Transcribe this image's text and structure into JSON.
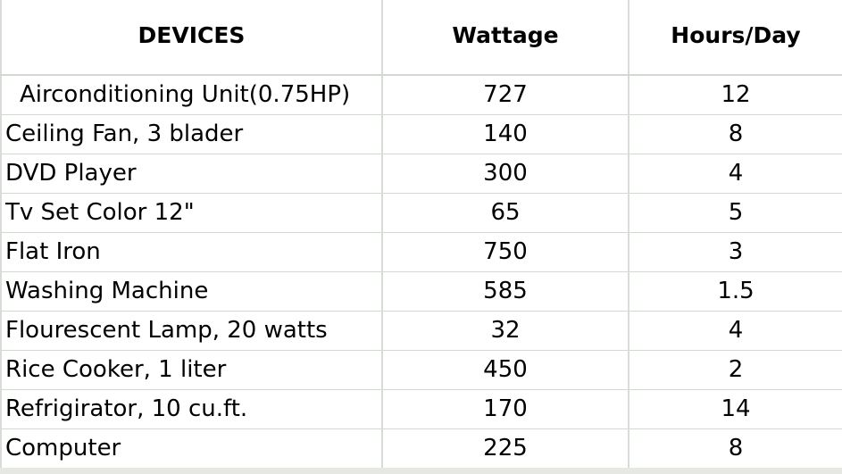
{
  "table": {
    "headers": [
      "DEVICES",
      "Wattage",
      "Hours/Day"
    ],
    "rows": [
      {
        "device": "Airconditioning Unit(0.75HP)",
        "wattage": "727",
        "hours": "12"
      },
      {
        "device": "Ceiling Fan, 3 blader",
        "wattage": "140",
        "hours": "8"
      },
      {
        "device": "DVD Player",
        "wattage": "300",
        "hours": "4"
      },
      {
        "device": "Tv Set Color 12\"",
        "wattage": "65",
        "hours": "5"
      },
      {
        "device": "Flat Iron",
        "wattage": "750",
        "hours": "3"
      },
      {
        "device": "Washing Machine",
        "wattage": "585",
        "hours": "1.5"
      },
      {
        "device": "Flourescent Lamp, 20 watts",
        "wattage": "32",
        "hours": "4"
      },
      {
        "device": "Rice Cooker, 1 liter",
        "wattage": "450",
        "hours": "2"
      },
      {
        "device": "Refrigirator, 10 cu.ft.",
        "wattage": "170",
        "hours": "14"
      },
      {
        "device": "Computer",
        "wattage": "225",
        "hours": "8"
      }
    ]
  }
}
